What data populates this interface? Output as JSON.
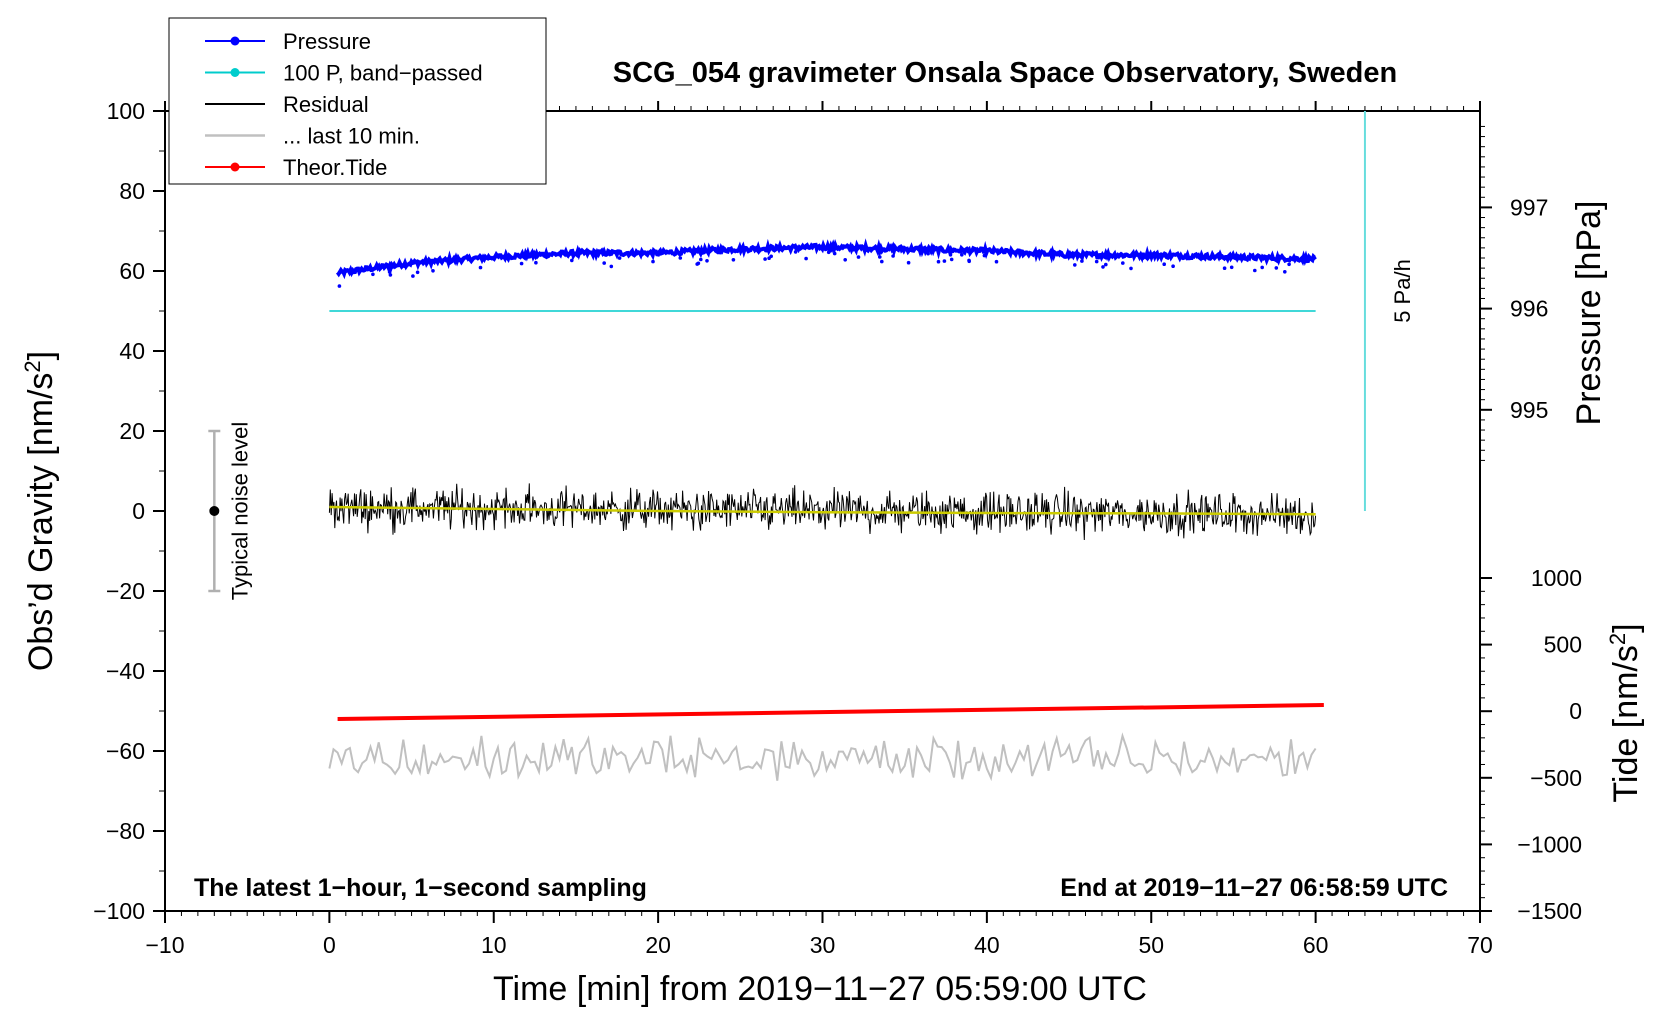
{
  "chart_data": {
    "type": "line",
    "title": "SCG_054 gravimeter Onsala Space Observatory, Sweden",
    "xlabel": "Time [min] from 2019−11−27 05:59:00 UTC",
    "ylabel_left_main": "Obs’d Gravity [nm/s",
    "ylabel_left_sup": "2",
    "ylabel_left_end": "]",
    "ylabel_right_pressure": "Pressure [hPa]",
    "ylabel_right_tide_main": "Tide [nm/s",
    "ylabel_right_tide_sup": "2",
    "ylabel_right_tide_end": "]",
    "xlim": [
      -10,
      70
    ],
    "ylim": [
      -100,
      100
    ],
    "x_ticks": [
      "−10",
      "0",
      "10",
      "20",
      "30",
      "40",
      "50",
      "60",
      "70"
    ],
    "x_tick_values": [
      -10,
      0,
      10,
      20,
      30,
      40,
      50,
      60,
      70
    ],
    "y_ticks": [
      "−100",
      "−80",
      "−60",
      "−40",
      "−20",
      "0",
      "20",
      "40",
      "60",
      "80",
      "100"
    ],
    "y_tick_values": [
      -100,
      -80,
      -60,
      -40,
      -20,
      0,
      20,
      40,
      60,
      80,
      100
    ],
    "pressure_ticks": [
      "995",
      "996",
      "997"
    ],
    "pressure_tick_values": [
      995,
      996,
      997
    ],
    "pressure_axis_map": {
      "pressure_at_0_gravity": 994.0,
      "gravity_per_hPa": 25.3
    },
    "tide_ticks": [
      "−1500",
      "−1000",
      "−500",
      "0",
      "500",
      "1000"
    ],
    "tide_tick_values": [
      -1500,
      -1000,
      -500,
      0,
      500,
      1000
    ],
    "tide_axis_map": {
      "tide_at_neg100_gravity": -1500,
      "gravity_per_1000_tide": 33.3
    },
    "series": [
      {
        "name": "Pressure",
        "color": "#0000ff",
        "kind": "dots",
        "x": [
          0.5,
          5,
          10,
          15,
          20,
          25,
          30,
          35,
          40,
          45,
          50,
          55,
          60
        ],
        "values": [
          59.5,
          62,
          63.5,
          64.5,
          64.5,
          65.5,
          66,
          65.5,
          65,
          64,
          64,
          63.5,
          63
        ]
      },
      {
        "name": "100 P, band−passed",
        "color": "#00cccc",
        "kind": "line",
        "x": [
          0,
          60
        ],
        "values": [
          50,
          50
        ]
      },
      {
        "name": "Residual",
        "color": "#000000",
        "kind": "noise",
        "x": [
          0,
          60
        ],
        "values": [
          1,
          -1
        ],
        "amplitude": 10
      },
      {
        "name": "... last 10 min.",
        "color": "#c0c0c0",
        "kind": "noise",
        "x": [
          0,
          60
        ],
        "values": [
          -62,
          -62
        ],
        "amplitude": 9
      },
      {
        "name": "Theor.Tide",
        "color": "#ff0000",
        "kind": "line",
        "x": [
          0.5,
          60.5
        ],
        "values": [
          -52,
          -48.5
        ]
      },
      {
        "name": "Residual smoothed",
        "color": "#cccc00",
        "kind": "line",
        "x": [
          0,
          10,
          20,
          30,
          40,
          50,
          60
        ],
        "values": [
          1,
          0.5,
          0,
          -0.3,
          -0.5,
          -0.6,
          -0.8
        ]
      }
    ],
    "legend": [
      {
        "label": "Pressure",
        "color": "#0000ff",
        "marker": true
      },
      {
        "label": "100 P, band−passed",
        "color": "#00cccc",
        "marker": true
      },
      {
        "label": "Residual",
        "color": "#000000",
        "marker": false
      },
      {
        "label": "... last 10 min.",
        "color": "#c0c0c0",
        "marker": false
      },
      {
        "label": "Theor.Tide",
        "color": "#ff0000",
        "marker": true
      }
    ],
    "legend_position": "top-left",
    "noise_bar": {
      "x": -7,
      "center": 0,
      "low": -20,
      "high": 20,
      "label": "Typical noise level"
    },
    "rate_bar": {
      "x": 63,
      "low": 0,
      "high": 100,
      "label": "5 Pa/h"
    },
    "footer_left": "The latest 1−hour, 1−second sampling",
    "footer_right": "End at 2019−11−27 06:58:59 UTC"
  }
}
